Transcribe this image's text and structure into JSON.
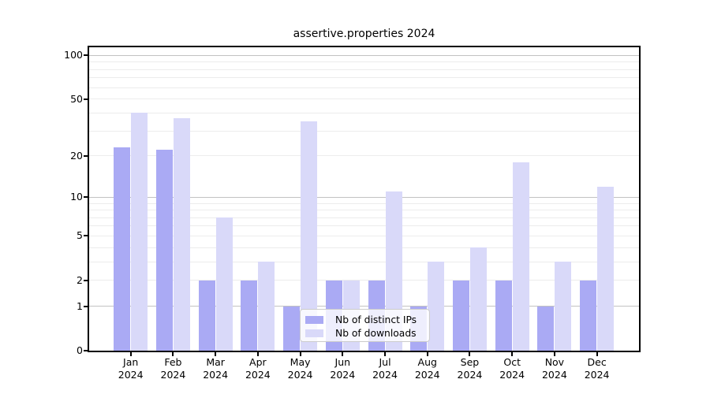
{
  "title": "assertive.properties 2024",
  "chart_data": {
    "type": "bar",
    "title": "assertive.properties 2024",
    "categories": [
      "Jan",
      "Feb",
      "Mar",
      "Apr",
      "May",
      "Jun",
      "Jul",
      "Aug",
      "Sep",
      "Oct",
      "Nov",
      "Dec"
    ],
    "xtick_labels": [
      [
        "Jan",
        "2024"
      ],
      [
        "Feb",
        "2024"
      ],
      [
        "Mar",
        "2024"
      ],
      [
        "Apr",
        "2024"
      ],
      [
        "May",
        "2024"
      ],
      [
        "Jun",
        "2024"
      ],
      [
        "Jul",
        "2024"
      ],
      [
        "Aug",
        "2024"
      ],
      [
        "Sep",
        "2024"
      ],
      [
        "Oct",
        "2024"
      ],
      [
        "Nov",
        "2024"
      ],
      [
        "Dec",
        "2024"
      ]
    ],
    "series": [
      {
        "name": "Nb of distinct IPs",
        "color": "#aaaaf4",
        "values": [
          23,
          22,
          2,
          2,
          1,
          2,
          2,
          1,
          2,
          2,
          1,
          2
        ]
      },
      {
        "name": "Nb of downloads",
        "color": "#d9d9f9",
        "values": [
          40,
          37,
          7,
          3,
          35,
          2,
          11,
          3,
          4,
          18,
          3,
          12
        ]
      }
    ],
    "yscale": "log(1+x)",
    "ylim": [
      0,
      113
    ],
    "ytick_values": [
      0,
      1,
      2,
      5,
      10,
      20,
      50,
      100
    ],
    "ytick_labels": [
      "0",
      "1",
      "2",
      "5",
      "10",
      "20",
      "50",
      "100"
    ],
    "major_grid_values": [
      1,
      10,
      100
    ],
    "minor_grid_values": [
      2,
      3,
      4,
      5,
      6,
      7,
      8,
      9,
      20,
      30,
      40,
      50,
      60,
      70,
      80,
      90
    ],
    "grid": true,
    "legend_position": "lower center",
    "colors": {
      "background": "#ffffff",
      "axis": "#000000",
      "text": "#000000",
      "major_grid": "#c2c2c2",
      "minor_grid": "#ececec"
    }
  }
}
